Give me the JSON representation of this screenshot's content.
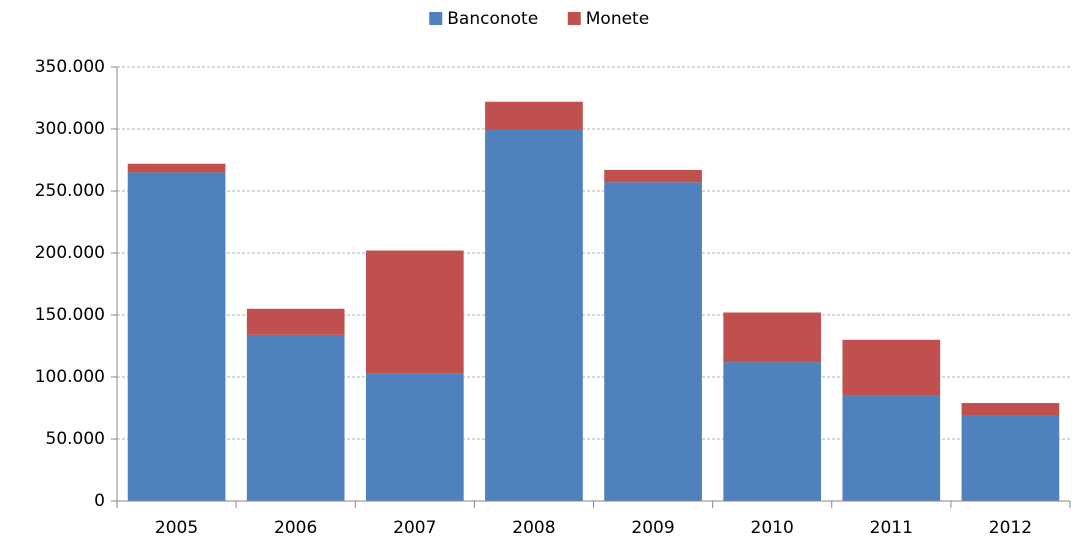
{
  "chart_data": {
    "type": "stacked_bar",
    "categories": [
      "2005",
      "2006",
      "2007",
      "2008",
      "2009",
      "2010",
      "2011",
      "2012"
    ],
    "series": [
      {
        "name": "Banconote",
        "color": "#4f81bd",
        "values": [
          265000,
          134000,
          103000,
          300000,
          257000,
          112000,
          85000,
          69000
        ]
      },
      {
        "name": "Monete",
        "color": "#c0504d",
        "values": [
          7000,
          21000,
          99000,
          22000,
          10000,
          40000,
          45000,
          10000
        ]
      }
    ],
    "ylim": [
      0,
      350000
    ],
    "yticks": [
      0,
      {
        "value": 50000,
        "label": "50.000"
      },
      {
        "value": 100000,
        "label": "100.000"
      },
      {
        "value": 150000,
        "label": "150.000"
      },
      {
        "value": 200000,
        "label": "200.000"
      },
      {
        "value": 250000,
        "label": "250.000"
      },
      {
        "value": 300000,
        "label": "300.000"
      },
      {
        "value": 350000,
        "label": "350.000"
      }
    ],
    "grid": true,
    "legend": "top"
  }
}
